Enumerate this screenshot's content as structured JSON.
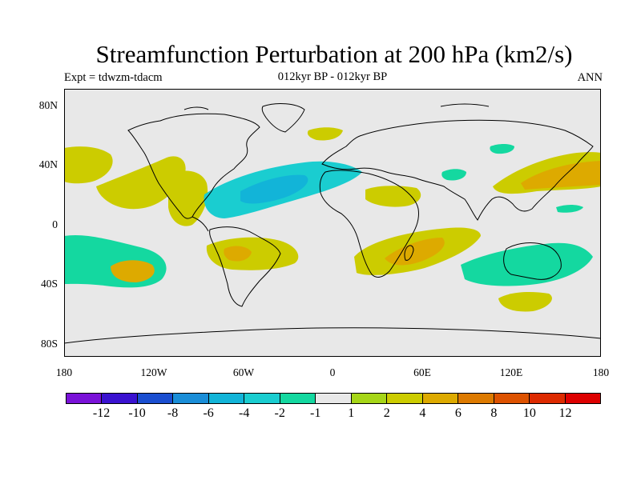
{
  "title": "Streamfunction Perturbation at 200 hPa (km2/s)",
  "subtitle_left": "Expt = tdwzm-tdacm",
  "subtitle_center": "012kyr BP - 012kyr BP",
  "subtitle_right": "ANN",
  "lat_labels": [
    "80N",
    "40N",
    "0",
    "40S",
    "80S"
  ],
  "lon_labels": [
    "180",
    "120W",
    "60W",
    "0",
    "60E",
    "120E",
    "180"
  ],
  "colorbar": {
    "colors": [
      "#7a12d8",
      "#3a12d0",
      "#1a4ed0",
      "#1a8ed8",
      "#12b4d8",
      "#1acdd0",
      "#14d8a0",
      "#e8e8e8",
      "#a6d618",
      "#cccc00",
      "#ddaa00",
      "#dd7a00",
      "#dd5200",
      "#dd2a00",
      "#dd0000"
    ],
    "labels": [
      "-12",
      "-10",
      "-8",
      "-6",
      "-4",
      "-2",
      "-1",
      "1",
      "2",
      "4",
      "6",
      "8",
      "10",
      "12"
    ]
  },
  "map": {
    "background": "#e8e8e8",
    "regions": [
      {
        "name": "north-pacific-east",
        "category": "2"
      },
      {
        "name": "east-pacific-tropics",
        "category": "2"
      },
      {
        "name": "caribbean-gulf",
        "category": "2"
      },
      {
        "name": "tropical-atlantic",
        "category": "-2"
      },
      {
        "name": "tropical-atlantic-core",
        "category": "-4"
      },
      {
        "name": "north-atlantic-nordic",
        "category": "2"
      },
      {
        "name": "east-africa-arabia",
        "category": "2"
      },
      {
        "name": "central-asia",
        "category": "-1"
      },
      {
        "name": "north-pacific-west",
        "category": "2"
      },
      {
        "name": "north-pacific-west-core",
        "category": "4"
      },
      {
        "name": "south-pacific-east",
        "category": "-1"
      },
      {
        "name": "south-pacific-east-core",
        "category": "4"
      },
      {
        "name": "south-america",
        "category": "2"
      },
      {
        "name": "south-indian-ocean",
        "category": "2"
      },
      {
        "name": "madagascar-core",
        "category": "4"
      },
      {
        "name": "australia-region",
        "category": "-1"
      },
      {
        "name": "southern-ocean-pacific",
        "category": "2"
      }
    ]
  }
}
